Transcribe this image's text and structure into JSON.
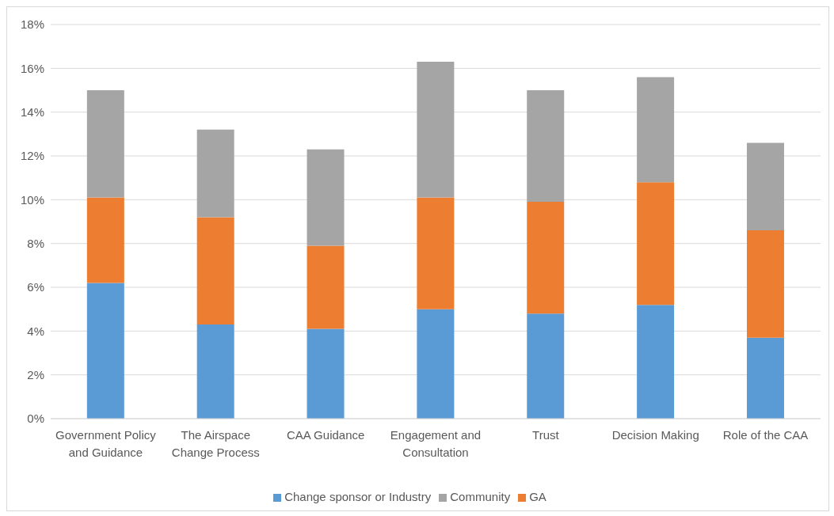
{
  "chart_data": {
    "type": "bar",
    "stacked": true,
    "categories": [
      "Government Policy and Guidance",
      "The Airspace Change Process",
      "CAA Guidance",
      "Engagement and Consultation",
      "Trust",
      "Decision Making",
      "Role of the CAA"
    ],
    "series": [
      {
        "name": "Change sponsor or Industry",
        "color": "#5b9bd5",
        "values": [
          6.2,
          4.3,
          4.1,
          5.0,
          4.8,
          5.2,
          3.7
        ]
      },
      {
        "name": "GA",
        "color": "#ed7d31",
        "values": [
          3.9,
          4.9,
          3.8,
          5.1,
          5.1,
          5.6,
          4.9
        ]
      },
      {
        "name": "Community",
        "color": "#a5a5a5",
        "values": [
          4.9,
          4.0,
          4.4,
          6.2,
          5.1,
          4.8,
          4.0
        ]
      }
    ],
    "ylim": [
      0,
      18
    ],
    "yticks": [
      {
        "value": 0,
        "label": "0%"
      },
      {
        "value": 2,
        "label": "2%"
      },
      {
        "value": 4,
        "label": "4%"
      },
      {
        "value": 6,
        "label": "6%"
      },
      {
        "value": 8,
        "label": "8%"
      },
      {
        "value": 10,
        "label": "10%"
      },
      {
        "value": 12,
        "label": "12%"
      },
      {
        "value": 14,
        "label": "14%"
      },
      {
        "value": 16,
        "label": "16%"
      },
      {
        "value": 18,
        "label": "18%"
      }
    ],
    "grid": "y",
    "legend": "bottom"
  }
}
